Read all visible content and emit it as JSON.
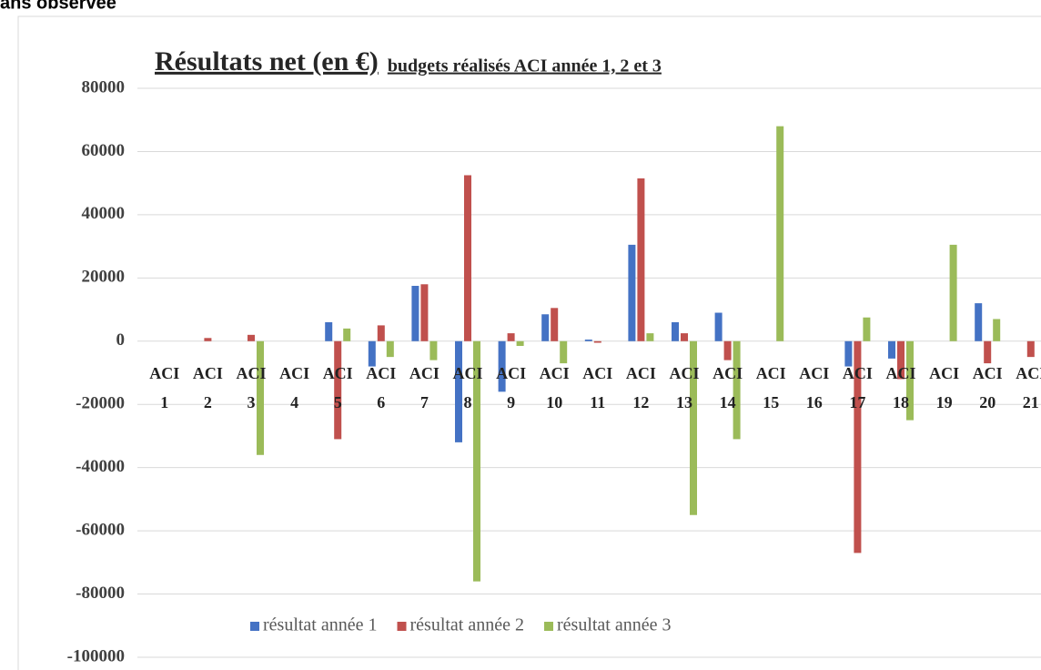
{
  "header": {
    "text": "ans observée"
  },
  "chart_data": {
    "type": "bar",
    "title": "Résultats net (en €)",
    "subtitle": "budgets réalisés ACI année 1, 2 et 3",
    "categories": [
      "ACI 1",
      "ACI 2",
      "ACI 3",
      "ACI 4",
      "ACI 5",
      "ACI 6",
      "ACI 7",
      "ACI 8",
      "ACI 9",
      "ACI 10",
      "ACI 11",
      "ACI 12",
      "ACI 13",
      "ACI 14",
      "ACI 15",
      "ACI 16",
      "ACI 17",
      "ACI 18",
      "ACI 19",
      "ACI 20",
      "ACI 21"
    ],
    "series": [
      {
        "name": "résultat année 1",
        "color": "#4472c4",
        "values": [
          0,
          0,
          0,
          0,
          6000,
          -8000,
          17500,
          -32000,
          -16000,
          8500,
          500,
          30500,
          6000,
          9000,
          0,
          0,
          -8000,
          -5500,
          0,
          12000,
          0
        ]
      },
      {
        "name": "résultat année 2",
        "color": "#c0504d",
        "values": [
          0,
          1000,
          2000,
          0,
          -31000,
          5000,
          18000,
          52500,
          2500,
          10500,
          -500,
          51500,
          2500,
          -6000,
          0,
          0,
          -67000,
          -12000,
          0,
          -7000,
          -5000
        ]
      },
      {
        "name": "résultat année 3",
        "color": "#9bbb59",
        "values": [
          0,
          0,
          -36000,
          0,
          4000,
          -5000,
          -6000,
          -76000,
          -1500,
          -7000,
          0,
          2500,
          -55000,
          -31000,
          68000,
          0,
          7500,
          -25000,
          30500,
          7000,
          0
        ]
      }
    ],
    "ylim": [
      -100000,
      80000
    ],
    "yticks": [
      -100000,
      -80000,
      -60000,
      -40000,
      -20000,
      0,
      20000,
      40000,
      60000,
      80000
    ],
    "grid": true,
    "legend": "bottom"
  }
}
